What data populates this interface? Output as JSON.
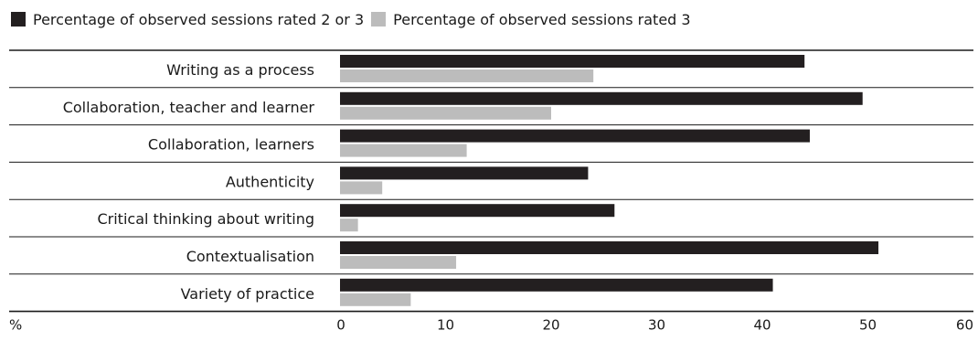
{
  "chart_data": {
    "type": "bar",
    "orientation": "horizontal",
    "categories": [
      "Writing as a process",
      "Collaboration, teacher and learner",
      "Collaboration, learners",
      "Authenticity",
      "Critical thinking about writing",
      "Contextualisation",
      "Variety of practice"
    ],
    "series": [
      {
        "name": "Percentage of observed sessions rated 2 or 3",
        "color": "#231f20",
        "values": [
          44,
          49.5,
          44.5,
          23.5,
          26,
          51,
          41
        ]
      },
      {
        "name": "Percentage of observed sessions rated 3",
        "color": "#bcbcbc",
        "values": [
          24,
          20,
          12,
          4,
          1.7,
          11,
          6.7
        ]
      }
    ],
    "xlabel": "%",
    "xlim": [
      0,
      60
    ],
    "xticks": [
      "0",
      "10",
      "20",
      "30",
      "40",
      "50",
      "60"
    ],
    "legend_position": "top-left",
    "grid": false
  }
}
